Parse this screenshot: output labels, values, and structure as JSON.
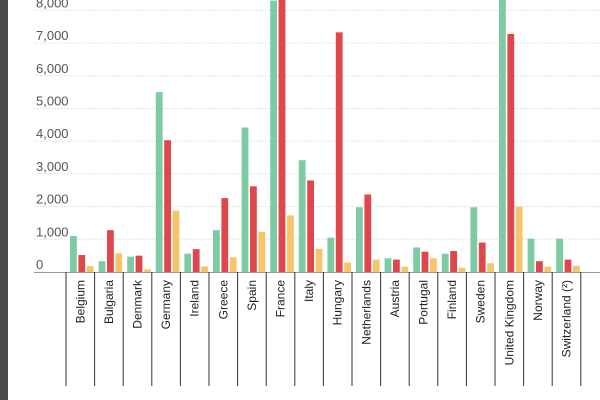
{
  "chart_data": {
    "type": "bar",
    "categories": [
      "Belgium",
      "Bulgaria",
      "Denmark",
      "Germany",
      "Ireland",
      "Greece",
      "Spain",
      "France",
      "Italy",
      "Hungary",
      "Netherlands",
      "Austria",
      "Portugal",
      "Finland",
      "Sweden",
      "United Kingdom",
      "Norway",
      "Switzerland (²)"
    ],
    "series": [
      {
        "color": "#7ccba2",
        "values": [
          1100,
          330,
          470,
          5500,
          560,
          1280,
          4420,
          8300,
          3420,
          1050,
          1980,
          420,
          750,
          560,
          1980,
          8500,
          1020,
          1020
        ]
      },
      {
        "color": "#e0474c",
        "values": [
          520,
          1280,
          500,
          4030,
          700,
          2260,
          2620,
          8500,
          2800,
          7330,
          2370,
          380,
          620,
          640,
          900,
          7280,
          330,
          380
        ]
      },
      {
        "color": "#f5c46b",
        "values": [
          180,
          570,
          80,
          1880,
          170,
          450,
          1230,
          1730,
          710,
          290,
          380,
          160,
          420,
          130,
          270,
          2000,
          160,
          190
        ]
      }
    ],
    "yticks": [
      0,
      1000,
      2000,
      3000,
      4000,
      5000,
      6000,
      7000,
      8000
    ],
    "ytick_labels": [
      "0",
      "1,000",
      "2,000",
      "3,000",
      "4,000",
      "5,000",
      "6,000",
      "7,000",
      "8,000"
    ],
    "ylim": [
      0,
      8500
    ],
    "grid": true,
    "legend": "none",
    "title": "",
    "xlabel": "",
    "ylabel": ""
  }
}
